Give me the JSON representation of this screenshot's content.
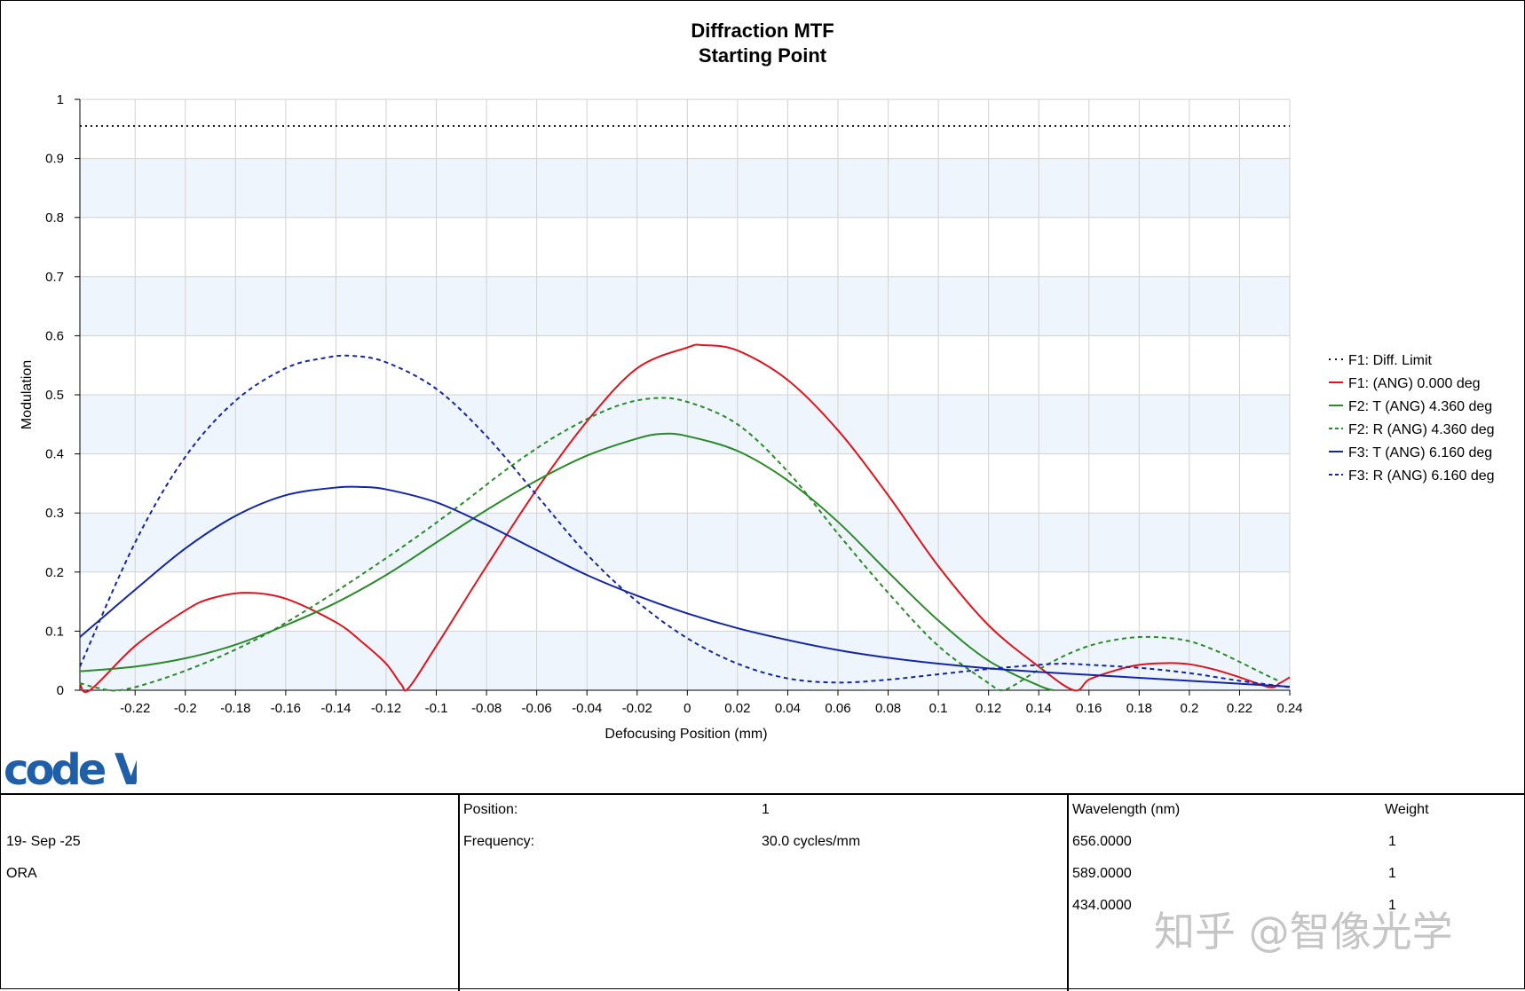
{
  "chart_data": {
    "type": "line",
    "title": "Diffraction MTF",
    "subtitle": "Starting Point",
    "xlabel": "Defocusing Position (mm)",
    "ylabel": "Modulation",
    "xlim": [
      -0.242,
      0.24
    ],
    "ylim": [
      0,
      1
    ],
    "x_ticks": [
      -0.22,
      -0.2,
      -0.18,
      -0.16,
      -0.14,
      -0.12,
      -0.1,
      -0.08,
      -0.06,
      -0.04,
      -0.02,
      0,
      0.02,
      0.04,
      0.06,
      0.08,
      0.1,
      0.12,
      0.14,
      0.16,
      0.18,
      0.2,
      0.22,
      0.24
    ],
    "x_tick_labels": [
      "-0.22",
      "-0.2",
      "-0.18",
      "-0.16",
      "-0.14",
      "-0.12",
      "-0.1",
      "-0.08",
      "-0.06",
      "-0.04",
      "-0.02",
      "0",
      "0.02",
      "0.04",
      "0.06",
      "0.08",
      "0.1",
      "0.12",
      "0.14",
      "0.16",
      "0.18",
      "0.2",
      "0.22",
      "0.24"
    ],
    "y_ticks": [
      0,
      0.1,
      0.2,
      0.3,
      0.4,
      0.5,
      0.6,
      0.7,
      0.8,
      0.9,
      1
    ],
    "y_tick_labels": [
      "0",
      "0.1",
      "0.2",
      "0.3",
      "0.4",
      "0.5",
      "0.6",
      "0.7",
      "0.8",
      "0.9",
      "1"
    ],
    "grid": true,
    "legend_position": "right",
    "series": [
      {
        "name": "F1: Diff. Limit",
        "color": "#1a1a1a",
        "dash": "dotted",
        "x": [
          -0.242,
          0.24
        ],
        "y": [
          0.955,
          0.955
        ]
      },
      {
        "name": "F1: (ANG) 0.000 deg",
        "color": "#e0141e",
        "dash": "solid",
        "x": [
          -0.242,
          -0.238,
          -0.22,
          -0.2,
          -0.19,
          -0.176,
          -0.16,
          -0.14,
          -0.13,
          -0.12,
          -0.114,
          -0.111,
          -0.1,
          -0.08,
          -0.06,
          -0.04,
          -0.02,
          0,
          0.006,
          0.02,
          0.04,
          0.06,
          0.08,
          0.1,
          0.12,
          0.14,
          0.154,
          0.16,
          0.17,
          0.18,
          0.192,
          0.2,
          0.21,
          0.22,
          0.232,
          0.236,
          0.24
        ],
        "y": [
          0.012,
          0.0,
          0.075,
          0.135,
          0.155,
          0.165,
          0.155,
          0.115,
          0.083,
          0.045,
          0.01,
          0.004,
          0.075,
          0.21,
          0.34,
          0.455,
          0.545,
          0.58,
          0.584,
          0.575,
          0.525,
          0.44,
          0.33,
          0.21,
          0.11,
          0.04,
          0.0,
          0.018,
          0.033,
          0.043,
          0.046,
          0.044,
          0.035,
          0.022,
          0.005,
          0.012,
          0.022
        ]
      },
      {
        "name": "F2: T (ANG) 4.360 deg",
        "color": "#2a8a2a",
        "dash": "solid",
        "x": [
          -0.242,
          -0.22,
          -0.2,
          -0.18,
          -0.16,
          -0.14,
          -0.12,
          -0.1,
          -0.08,
          -0.06,
          -0.04,
          -0.02,
          -0.01,
          0,
          0.02,
          0.04,
          0.06,
          0.08,
          0.1,
          0.12,
          0.14,
          0.146
        ],
        "y": [
          0.032,
          0.04,
          0.054,
          0.077,
          0.11,
          0.148,
          0.195,
          0.25,
          0.305,
          0.355,
          0.397,
          0.426,
          0.434,
          0.43,
          0.405,
          0.355,
          0.285,
          0.2,
          0.118,
          0.05,
          0.008,
          0.0
        ]
      },
      {
        "name": "F2: R (ANG) 4.360 deg",
        "color": "#2a8a2a",
        "dash": "dashed",
        "x": [
          -0.242,
          -0.235,
          -0.226,
          -0.21,
          -0.19,
          -0.17,
          -0.15,
          -0.13,
          -0.11,
          -0.09,
          -0.07,
          -0.05,
          -0.03,
          -0.014,
          0,
          0.02,
          0.04,
          0.06,
          0.08,
          0.1,
          0.12,
          0.125,
          0.13,
          0.14,
          0.15,
          0.16,
          0.17,
          0.18,
          0.19,
          0.2,
          0.21,
          0.22,
          0.23,
          0.236
        ],
        "y": [
          0.012,
          0.004,
          0.0,
          0.018,
          0.05,
          0.09,
          0.14,
          0.195,
          0.253,
          0.315,
          0.38,
          0.436,
          0.478,
          0.494,
          0.488,
          0.45,
          0.37,
          0.265,
          0.165,
          0.075,
          0.012,
          0.0,
          0.008,
          0.035,
          0.058,
          0.075,
          0.085,
          0.09,
          0.089,
          0.083,
          0.068,
          0.048,
          0.027,
          0.015
        ]
      },
      {
        "name": "F3: T (ANG) 6.160 deg",
        "color": "#1426a8",
        "dash": "solid",
        "x": [
          -0.242,
          -0.22,
          -0.2,
          -0.18,
          -0.16,
          -0.14,
          -0.13,
          -0.12,
          -0.1,
          -0.08,
          -0.06,
          -0.04,
          -0.02,
          0,
          0.02,
          0.04,
          0.06,
          0.08,
          0.1,
          0.12,
          0.14,
          0.16,
          0.18,
          0.2,
          0.22,
          0.24
        ],
        "y": [
          0.09,
          0.17,
          0.24,
          0.295,
          0.33,
          0.343,
          0.344,
          0.34,
          0.318,
          0.28,
          0.237,
          0.195,
          0.16,
          0.13,
          0.105,
          0.085,
          0.068,
          0.055,
          0.045,
          0.037,
          0.031,
          0.026,
          0.021,
          0.016,
          0.011,
          0.006
        ]
      },
      {
        "name": "F3: R (ANG) 6.160 deg",
        "color": "#1426a8",
        "dash": "dashed",
        "x": [
          -0.242,
          -0.22,
          -0.2,
          -0.18,
          -0.16,
          -0.145,
          -0.134,
          -0.12,
          -0.1,
          -0.08,
          -0.06,
          -0.04,
          -0.02,
          0,
          0.02,
          0.04,
          0.06,
          0.08,
          0.1,
          0.12,
          0.14,
          0.15,
          0.16,
          0.18,
          0.2,
          0.22,
          0.24
        ],
        "y": [
          0.04,
          0.25,
          0.395,
          0.49,
          0.545,
          0.562,
          0.566,
          0.555,
          0.51,
          0.43,
          0.33,
          0.23,
          0.15,
          0.088,
          0.045,
          0.02,
          0.013,
          0.018,
          0.027,
          0.036,
          0.043,
          0.045,
          0.043,
          0.038,
          0.029,
          0.016,
          0.005
        ]
      }
    ]
  },
  "info": {
    "date": "19- Sep -25",
    "org": "ORA",
    "position_label": "Position:",
    "position_value": "1",
    "frequency_label": "Frequency:",
    "frequency_value": "30.0 cycles/mm",
    "wavelength_header": "Wavelength (nm)",
    "weight_header": "Weight",
    "wavelengths": [
      {
        "wl": "656.0000",
        "w": "1"
      },
      {
        "wl": "589.0000",
        "w": "1"
      },
      {
        "wl": "434.0000",
        "w": "1"
      }
    ]
  },
  "logo_text": "code V",
  "watermark": "知乎 @智像光学",
  "colors": {
    "band": "#eef5fc",
    "grid": "#d2d2d2"
  }
}
